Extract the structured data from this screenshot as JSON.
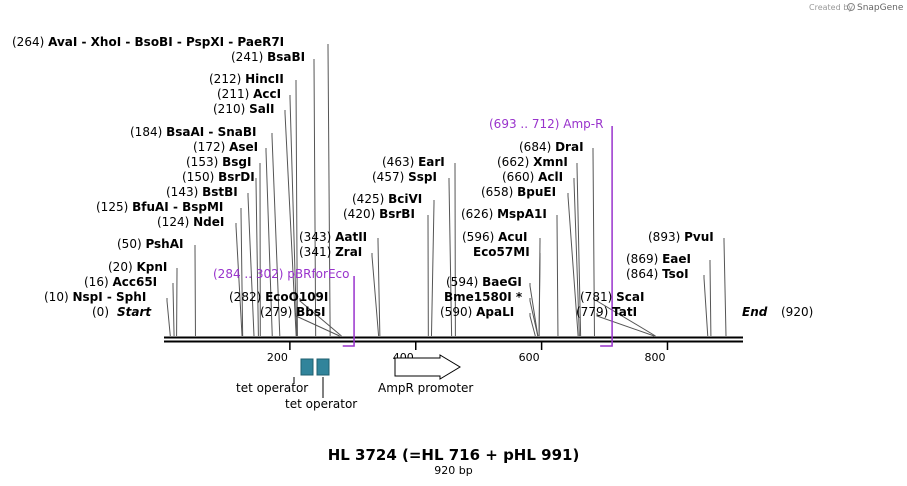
{
  "map": {
    "title": "HL 3724 (=HL 716 + pHL 991)",
    "subtitle": "920 bp",
    "length": 920,
    "credit": {
      "prefix": "Created by",
      "brand": "SnapGene",
      "icon": "snapgene-logo-icon"
    },
    "start_label": {
      "pos": "(0)",
      "name": "Start"
    },
    "end_label": {
      "pos": "(920)",
      "name": "End"
    },
    "ticks": [
      {
        "value": 200,
        "label": "200"
      },
      {
        "value": 400,
        "label": "400"
      },
      {
        "value": 600,
        "label": "600"
      },
      {
        "value": 800,
        "label": "800"
      }
    ],
    "enzymes": [
      {
        "bp": 264,
        "pos": "(264)",
        "names": [
          "AvaI",
          "XhoI",
          "BsoBI",
          "PspXI",
          "PaeR7I"
        ]
      },
      {
        "bp": 241,
        "pos": "(241)",
        "names": [
          "BsaBI"
        ]
      },
      {
        "bp": 212,
        "pos": "(212)",
        "names": [
          "HincII"
        ]
      },
      {
        "bp": 211,
        "pos": "(211)",
        "names": [
          "AccI"
        ]
      },
      {
        "bp": 210,
        "pos": "(210)",
        "names": [
          "SalI"
        ]
      },
      {
        "bp": 184,
        "pos": "(184)",
        "names": [
          "BsaAI",
          "SnaBI"
        ]
      },
      {
        "bp": 172,
        "pos": "(172)",
        "names": [
          "AseI"
        ]
      },
      {
        "bp": 153,
        "pos": "(153)",
        "names": [
          "BsgI"
        ]
      },
      {
        "bp": 150,
        "pos": "(150)",
        "names": [
          "BsrDI"
        ]
      },
      {
        "bp": 143,
        "pos": "(143)",
        "names": [
          "BstBI"
        ]
      },
      {
        "bp": 125,
        "pos": "(125)",
        "names": [
          "BfuAI",
          "BspMI"
        ]
      },
      {
        "bp": 124,
        "pos": "(124)",
        "names": [
          "NdeI"
        ]
      },
      {
        "bp": 50,
        "pos": "(50)",
        "names": [
          "PshAI"
        ]
      },
      {
        "bp": 20,
        "pos": "(20)",
        "names": [
          "KpnI"
        ]
      },
      {
        "bp": 16,
        "pos": "(16)",
        "names": [
          "Acc65I"
        ]
      },
      {
        "bp": 10,
        "pos": "(10)",
        "names": [
          "NspI",
          "SphI"
        ]
      },
      {
        "bp": 343,
        "pos": "(343)",
        "names": [
          "AatII"
        ]
      },
      {
        "bp": 341,
        "pos": "(341)",
        "names": [
          "ZraI"
        ]
      },
      {
        "bp": 282,
        "pos": "(282)",
        "names": [
          "EcoO109I"
        ]
      },
      {
        "bp": 279,
        "pos": "(279)",
        "names": [
          "BbsI"
        ]
      },
      {
        "bp": 463,
        "pos": "(463)",
        "names": [
          "EarI"
        ]
      },
      {
        "bp": 457,
        "pos": "(457)",
        "names": [
          "SspI"
        ]
      },
      {
        "bp": 425,
        "pos": "(425)",
        "names": [
          "BciVI"
        ]
      },
      {
        "bp": 420,
        "pos": "(420)",
        "names": [
          "BsrBI"
        ]
      },
      {
        "bp": 594,
        "pos": "(594)",
        "names": [
          "BaeGI"
        ]
      },
      {
        "bp": 594,
        "pos": "",
        "names": [
          "Bme1580I *"
        ]
      },
      {
        "bp": 590,
        "pos": "(590)",
        "names": [
          "ApaLI"
        ]
      },
      {
        "bp": 684,
        "pos": "(684)",
        "names": [
          "DraI"
        ]
      },
      {
        "bp": 662,
        "pos": "(662)",
        "names": [
          "XmnI"
        ]
      },
      {
        "bp": 660,
        "pos": "(660)",
        "names": [
          "AclI"
        ]
      },
      {
        "bp": 658,
        "pos": "(658)",
        "names": [
          "BpuEI"
        ]
      },
      {
        "bp": 626,
        "pos": "(626)",
        "names": [
          "MspA1I"
        ]
      },
      {
        "bp": 596,
        "pos": "(596)",
        "names": [
          "AcuI"
        ]
      },
      {
        "bp": 596,
        "pos": "",
        "names": [
          "Eco57MI"
        ]
      },
      {
        "bp": 781,
        "pos": "(781)",
        "names": [
          "ScaI"
        ]
      },
      {
        "bp": 779,
        "pos": "(779)",
        "names": [
          "TatI"
        ]
      },
      {
        "bp": 893,
        "pos": "(893)",
        "names": [
          "PvuI"
        ]
      },
      {
        "bp": 869,
        "pos": "(869)",
        "names": [
          "EaeI"
        ]
      },
      {
        "bp": 864,
        "pos": "(864)",
        "names": [
          "TsoI"
        ]
      }
    ],
    "primers": [
      {
        "range": "(284 .. 302)",
        "name": "pBRforEco",
        "start": 284,
        "end": 302
      },
      {
        "range": "(693 .. 712)",
        "name": "Amp-R",
        "start": 693,
        "end": 712
      }
    ],
    "features": [
      {
        "name": "tet operator",
        "kind": "box",
        "start": 220,
        "end": 240
      },
      {
        "name": "tet operator",
        "kind": "box",
        "start": 245,
        "end": 265
      },
      {
        "name": "AmpR promoter",
        "kind": "arrow",
        "start": 367,
        "end": 470
      }
    ],
    "colors": {
      "primer": "#9933cc",
      "feature_box": "#31849b",
      "line": "#000000",
      "credit": "#999999"
    }
  }
}
